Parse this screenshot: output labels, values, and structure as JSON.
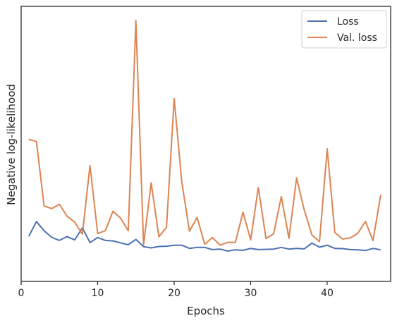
{
  "chart_data": {
    "type": "line",
    "title": "",
    "xlabel": "Epochs",
    "ylabel": "Negative log-likelihood",
    "xlim": [
      0,
      48.3
    ],
    "ylim": [
      0,
      1
    ],
    "x_ticks": [
      0,
      10,
      20,
      30,
      40
    ],
    "y_ticks_shown": false,
    "grid": false,
    "legend_position": "top-right",
    "x": [
      1,
      2,
      3,
      4,
      5,
      6,
      7,
      8,
      9,
      10,
      11,
      12,
      13,
      14,
      15,
      16,
      17,
      18,
      19,
      20,
      21,
      22,
      23,
      24,
      25,
      26,
      27,
      28,
      29,
      30,
      31,
      32,
      33,
      34,
      35,
      36,
      37,
      38,
      39,
      40,
      41,
      42,
      43,
      44,
      45,
      46,
      47
    ],
    "series": [
      {
        "name": "Loss",
        "color": "#4c72b0",
        "values": [
          0.105,
          0.166,
          0.128,
          0.101,
          0.088,
          0.104,
          0.09,
          0.14,
          0.079,
          0.1,
          0.088,
          0.086,
          0.078,
          0.07,
          0.092,
          0.062,
          0.057,
          0.063,
          0.064,
          0.068,
          0.068,
          0.055,
          0.059,
          0.059,
          0.05,
          0.052,
          0.044,
          0.049,
          0.047,
          0.055,
          0.05,
          0.051,
          0.052,
          0.059,
          0.052,
          0.055,
          0.053,
          0.077,
          0.06,
          0.068,
          0.055,
          0.054,
          0.05,
          0.049,
          0.046,
          0.055,
          0.049
        ]
      },
      {
        "name": "Val. loss",
        "color": "#dd8452",
        "values": [
          0.507,
          0.498,
          0.231,
          0.22,
          0.238,
          0.188,
          0.164,
          0.114,
          0.398,
          0.117,
          0.128,
          0.209,
          0.18,
          0.128,
          1.0,
          0.07,
          0.327,
          0.103,
          0.142,
          0.676,
          0.33,
          0.126,
          0.183,
          0.072,
          0.1,
          0.068,
          0.08,
          0.08,
          0.205,
          0.09,
          0.307,
          0.096,
          0.115,
          0.27,
          0.097,
          0.347,
          0.215,
          0.111,
          0.083,
          0.468,
          0.121,
          0.094,
          0.098,
          0.117,
          0.167,
          0.087,
          0.277
        ]
      }
    ]
  }
}
